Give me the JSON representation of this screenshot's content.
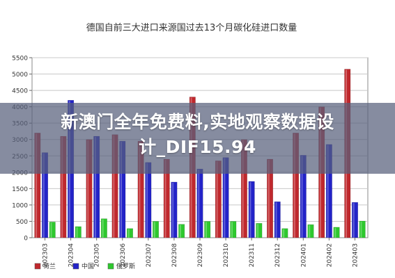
{
  "chart_data": {
    "type": "bar",
    "title": "德国自前三大进口来源国过去13个月碳化硅进口数量",
    "categories": [
      "202303",
      "202304",
      "202305",
      "202306",
      "202307",
      "202308",
      "202309",
      "202310",
      "202311",
      "202312",
      "202401",
      "202402",
      "202403"
    ],
    "series": [
      {
        "name": "荷兰",
        "color": "#c0282d",
        "values": [
          3200,
          3100,
          3000,
          3150,
          2950,
          2400,
          4300,
          2350,
          3000,
          2400,
          3200,
          4000,
          5150
        ]
      },
      {
        "name": "中国",
        "color": "#2323c8",
        "values": [
          2600,
          4200,
          3100,
          2950,
          2300,
          1700,
          2100,
          2450,
          1720,
          1100,
          2520,
          2850,
          1080
        ]
      },
      {
        "name": "俄罗斯",
        "color": "#2ec82e",
        "values": [
          480,
          340,
          580,
          280,
          500,
          410,
          500,
          500,
          440,
          280,
          400,
          320,
          510
        ]
      }
    ],
    "ylim": [
      0,
      5500
    ],
    "yticks": [
      0,
      500,
      1000,
      1500,
      2000,
      2500,
      3000,
      3500,
      4000,
      4500,
      5000,
      5500
    ],
    "grid": true,
    "legend": "bottom-left"
  },
  "overlay": {
    "line1": "新澳门全年免费料,实地观察数据设",
    "line2": "计_DIF15.94"
  }
}
